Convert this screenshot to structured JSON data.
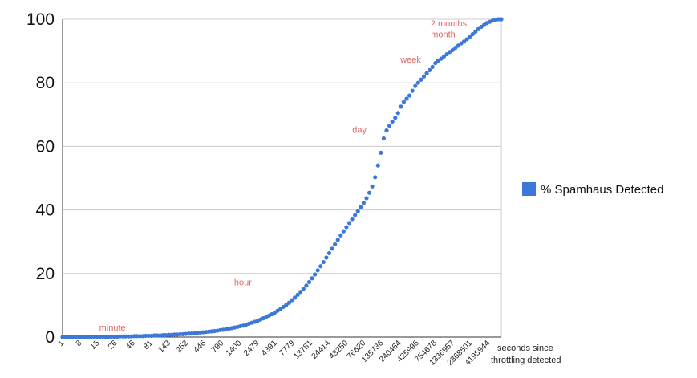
{
  "chart_data": {
    "type": "scatter",
    "title": "",
    "xlabel": "seconds since throttling detected",
    "xlabel_lines": [
      "seconds since",
      "throttling detected"
    ],
    "ylabel": "",
    "ylim": [
      0,
      100
    ],
    "y_ticks": [
      "0",
      "20",
      "40",
      "60",
      "80",
      "100"
    ],
    "grid": "horizontal",
    "legend_position": "right",
    "x_scale": "categorical-log-like",
    "x_tick_labels": [
      "1",
      "8",
      "15",
      "26",
      "46",
      "81",
      "143",
      "252",
      "446",
      "790",
      "1400",
      "2479",
      "4391",
      "7779",
      "13781",
      "24414",
      "43250",
      "76620",
      "135736",
      "240464",
      "425996",
      "754678",
      "1336957",
      "2368501",
      "4195944"
    ],
    "series": [
      {
        "name": "% Spamhaus Detected",
        "color": "#3c78d8",
        "values": [
          0.0,
          0.0,
          0.0,
          0.0,
          0.0,
          0.0,
          0.0,
          0.0,
          0.0,
          0.0,
          0.1,
          0.1,
          0.1,
          0.1,
          0.1,
          0.1,
          0.1,
          0.1,
          0.1,
          0.1,
          0.2,
          0.2,
          0.2,
          0.2,
          0.2,
          0.3,
          0.3,
          0.3,
          0.3,
          0.4,
          0.4,
          0.4,
          0.5,
          0.5,
          0.5,
          0.6,
          0.6,
          0.7,
          0.7,
          0.8,
          0.8,
          0.9,
          0.9,
          1.0,
          1.1,
          1.1,
          1.2,
          1.3,
          1.4,
          1.5,
          1.6,
          1.7,
          1.8,
          1.9,
          2.0,
          2.2,
          2.3,
          2.5,
          2.6,
          2.8,
          3.0,
          3.2,
          3.4,
          3.6,
          3.9,
          4.2,
          4.5,
          4.8,
          5.1,
          5.5,
          5.9,
          6.3,
          6.7,
          7.2,
          7.7,
          8.3,
          8.8,
          9.5,
          10.1,
          10.8,
          11.6,
          12.4,
          13.3,
          14.2,
          15.2,
          16.2,
          17.3,
          18.5,
          19.7,
          21.0,
          22.3,
          23.6,
          25.0,
          26.4,
          27.8,
          29.2,
          30.6,
          32.0,
          33.3,
          34.6,
          35.9,
          37.1,
          38.4,
          39.6,
          40.9,
          42.2,
          43.7,
          45.4,
          47.4,
          50.3,
          54.0,
          58.0,
          62.5,
          65.0,
          66.5,
          67.8,
          69.0,
          70.5,
          72.5,
          74.0,
          75.0,
          76.0,
          77.5,
          79.0,
          80.0,
          81.0,
          82.0,
          83.0,
          84.0,
          85.0,
          86.2,
          87.0,
          87.6,
          88.3,
          89.0,
          89.7,
          90.3,
          91.0,
          91.7,
          92.4,
          93.0,
          93.7,
          94.5,
          95.3,
          96.1,
          96.9,
          97.6,
          98.2,
          98.8,
          99.2,
          99.6,
          99.8,
          100.0,
          100.0
        ]
      }
    ],
    "annotations": [
      {
        "text": "minute",
        "x_index": 22,
        "y": 0.2
      },
      {
        "text": "hour",
        "x_index": 66,
        "y": 14.5
      },
      {
        "text": "day",
        "x_index": 106,
        "y": 62.5
      },
      {
        "text": "week",
        "x_index": 125,
        "y": 84.6
      },
      {
        "text": "month",
        "x_index": 137,
        "y": 92.5
      },
      {
        "text": "2 months",
        "x_index": 141,
        "y": 96.0
      }
    ]
  }
}
